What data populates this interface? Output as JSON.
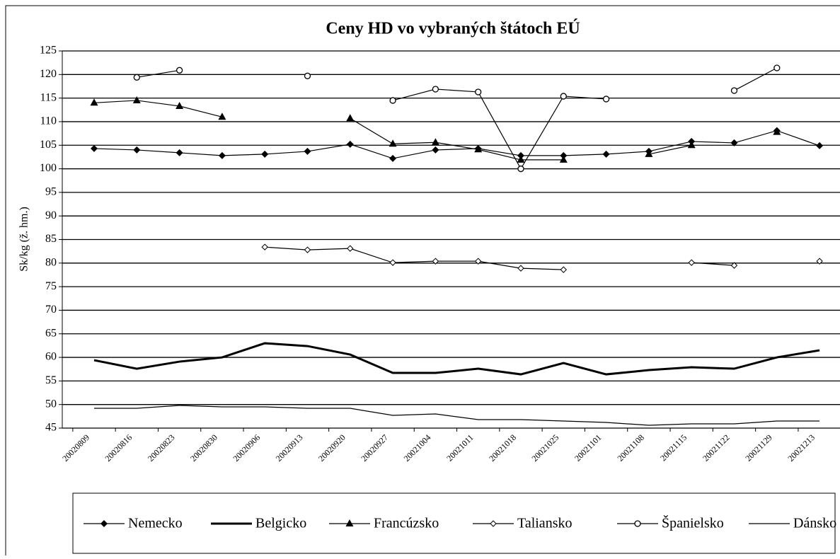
{
  "chart_data": {
    "type": "line",
    "title": "Ceny HD  vo vybraných štátoch  EÚ",
    "y_label": "Sk/kg (ž. hm.)",
    "categories": [
      "20020809",
      "20020816",
      "20020823",
      "20020830",
      "20020906",
      "20020913",
      "20020920",
      "20020927",
      "20021004",
      "20021011",
      "20021018",
      "20021025",
      "20021101",
      "20021108",
      "20021115",
      "20021122",
      "20021129",
      "20021213"
    ],
    "ylim": [
      45,
      125
    ],
    "yticks": [
      45,
      50,
      55,
      60,
      65,
      70,
      75,
      80,
      85,
      90,
      95,
      100,
      105,
      110,
      115,
      120,
      125
    ],
    "grid": true,
    "legend": "bottom",
    "series": [
      {
        "name": "Nemecko",
        "color": "#000000",
        "marker": "diamond-filled",
        "line_width": 1.2,
        "values": [
          104.3,
          104,
          103.4,
          102.8,
          103.1,
          103.7,
          105.2,
          102.2,
          104,
          104.3,
          102.8,
          102.8,
          103.1,
          103.7,
          105.8,
          105.5,
          108.1,
          104.9
        ]
      },
      {
        "name": "Belgicko",
        "color": "#000000",
        "marker": "none",
        "line_width": 3,
        "values": [
          59.4,
          57.6,
          59.1,
          60,
          63,
          62.4,
          60.6,
          56.7,
          56.7,
          57.6,
          56.4,
          58.8,
          56.4,
          57.3,
          57.9,
          57.6,
          60,
          61.5
        ]
      },
      {
        "name": "Francúzsko",
        "color": "#000000",
        "marker": "triangle-filled",
        "line_width": 1.2,
        "values": [
          114,
          114.5,
          113.3,
          111,
          null,
          null,
          110.7,
          105.3,
          105.6,
          104.1,
          101.9,
          101.9,
          null,
          103.1,
          105,
          null,
          107.8,
          null
        ]
      },
      {
        "name": "Taliansko",
        "color": "#000000",
        "marker": "diamond-open",
        "line_width": 1.2,
        "values": [
          null,
          null,
          null,
          null,
          83.4,
          82.8,
          83.1,
          80.1,
          80.4,
          80.4,
          78.9,
          78.6,
          null,
          null,
          80.1,
          79.5,
          null,
          80.4
        ]
      },
      {
        "name": "Španielsko",
        "color": "#000000",
        "marker": "circle-open",
        "line_width": 1.2,
        "values": [
          null,
          119.4,
          120.9,
          null,
          null,
          119.7,
          null,
          114.5,
          116.9,
          116.3,
          100,
          115.4,
          114.8,
          null,
          null,
          116.6,
          121.4,
          null
        ]
      },
      {
        "name": "Dánsko",
        "color": "#000000",
        "marker": "none",
        "line_width": 1.2,
        "values": [
          49.2,
          49.2,
          49.8,
          49.5,
          49.5,
          49.2,
          49.2,
          47.7,
          48,
          46.8,
          46.8,
          46.5,
          46.2,
          45.6,
          45.9,
          45.9,
          46.5,
          46.5
        ]
      }
    ]
  }
}
